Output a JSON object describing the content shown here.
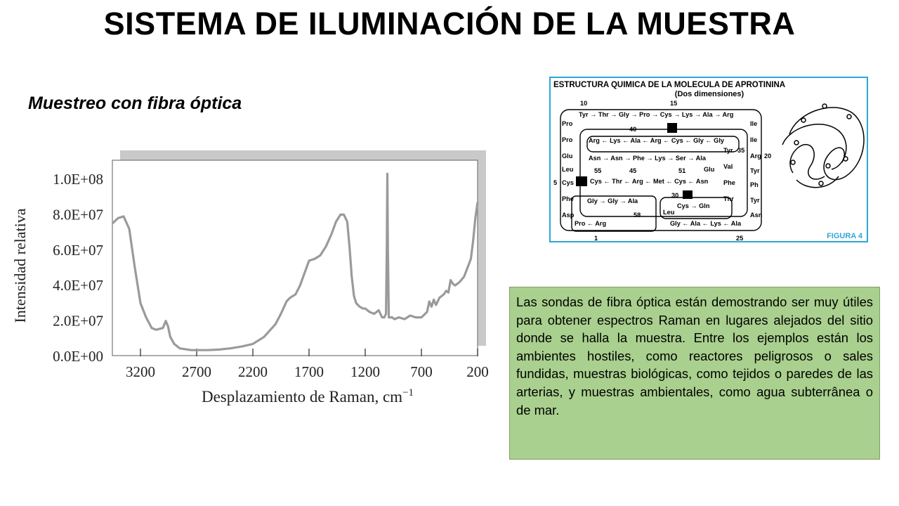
{
  "slide": {
    "title": "SISTEMA DE ILUMINACIÓN DE LA MUESTRA",
    "subtitle": "Muestreo con fibra óptica",
    "body_text": "Las sondas de fibra óptica están demostrando ser muy útiles para obtener espectros Raman en lugares alejados del sitio donde se halla la muestra. Entre los ejemplos están los ambientes hostiles, como reactores peligrosos o sales fundidas, muestras biológicas, como tejidos o paredes de las arterias, y muestras ambientales, como agua subterrânea o de mar."
  },
  "chart_data": {
    "type": "line",
    "xlabel": "Desplazamiento de Raman, cm",
    "xlabel_sup": "−1",
    "ylabel": "Intensidad relativa",
    "xlim": [
      3450,
      200
    ],
    "ylim": [
      0,
      100000000
    ],
    "x_ticks": [
      "3200",
      "2700",
      "2200",
      "1700",
      "1200",
      "700",
      "200"
    ],
    "y_ticks": [
      "0.0E+00",
      "2.0E+07",
      "4.0E+07",
      "6.0E+07",
      "8.0E+07",
      "1.0E+08"
    ],
    "series": [
      {
        "color": "#9a9a9a",
        "x": [
          3450,
          3400,
          3350,
          3300,
          3250,
          3200,
          3150,
          3100,
          3060,
          3000,
          2975,
          2955,
          2935,
          2900,
          2850,
          2800,
          2750,
          2700,
          2600,
          2500,
          2400,
          2300,
          2200,
          2100,
          2000,
          1950,
          1900,
          1870,
          1820,
          1780,
          1740,
          1700,
          1650,
          1600,
          1550,
          1500,
          1460,
          1420,
          1390,
          1360,
          1340,
          1320,
          1300,
          1280,
          1250,
          1220,
          1200,
          1160,
          1120,
          1080,
          1050,
          1030,
          1015,
          1008,
          1003,
          998,
          990,
          960,
          940,
          900,
          850,
          800,
          750,
          700,
          650,
          630,
          610,
          590,
          570,
          540,
          500,
          480,
          460,
          440,
          420,
          400,
          360,
          320,
          290,
          260,
          240,
          220,
          200
        ],
        "y": [
          75000000,
          78000000,
          79000000,
          72000000,
          50000000,
          30000000,
          22000000,
          16000000,
          15000000,
          16000000,
          20000000,
          17000000,
          11000000,
          7000000,
          4500000,
          4000000,
          3500000,
          3500000,
          3500000,
          3800000,
          4500000,
          5500000,
          7000000,
          11000000,
          18000000,
          24000000,
          31000000,
          33000000,
          35000000,
          40000000,
          47000000,
          54000000,
          55000000,
          57000000,
          62000000,
          69000000,
          76000000,
          80000000,
          80000000,
          76000000,
          62000000,
          45000000,
          34000000,
          30000000,
          28000000,
          27000000,
          27000000,
          25000000,
          24000000,
          26000000,
          22000000,
          22000000,
          24000000,
          60000000,
          103000000,
          60000000,
          22000000,
          22000000,
          21000000,
          22000000,
          21000000,
          23000000,
          22000000,
          22000000,
          25000000,
          31000000,
          28000000,
          32000000,
          29000000,
          33000000,
          35000000,
          37000000,
          36000000,
          43000000,
          41000000,
          40000000,
          42000000,
          45000000,
          50000000,
          55000000,
          65000000,
          78000000,
          87000000
        ]
      }
    ]
  },
  "figure": {
    "title": "ESTRUCTURA QUIMICA DE LA MOLECULA DE APROTININA",
    "subtitle": "(Dos dimensiones)",
    "caption": "FIGURA 4",
    "numbers": [
      "10",
      "15",
      "40",
      "35",
      "20",
      "55",
      "45",
      "51",
      "5",
      "30",
      "58",
      "1",
      "25"
    ],
    "row_top": "Tyr → Thr → Gly → Pro → Cys → Lys → Ala → Arg",
    "row_2": "Arg ← Lys ← Ala ← Arg ← Cys ← Gly ← Gly",
    "row_3": "Asn → Asn → Phe → Lys → Ser → Ala",
    "row_4": "Cys ← Thr ← Arg ← Met ← Cys ← Asn",
    "row_5": "Gly → Gly → Ala",
    "row_6": "Cys → Gln",
    "row_bottom": "Gly ← Ala ← Lys ← Ala",
    "row_pro_arg": "Pro ← Arg",
    "col_left": [
      "Pro",
      "Pro",
      "Glu",
      "Leu",
      "Cys",
      "Phe",
      "Asp"
    ],
    "col_right": [
      "Ile",
      "Ile",
      "Arg",
      "Tyr",
      "Ph",
      "Tyr",
      "Asn"
    ],
    "col_inner_right": [
      "Tyr",
      "Val",
      "Phe",
      "Thr"
    ],
    "col_inner_glu": "Glu",
    "col_leu": "Leu"
  }
}
